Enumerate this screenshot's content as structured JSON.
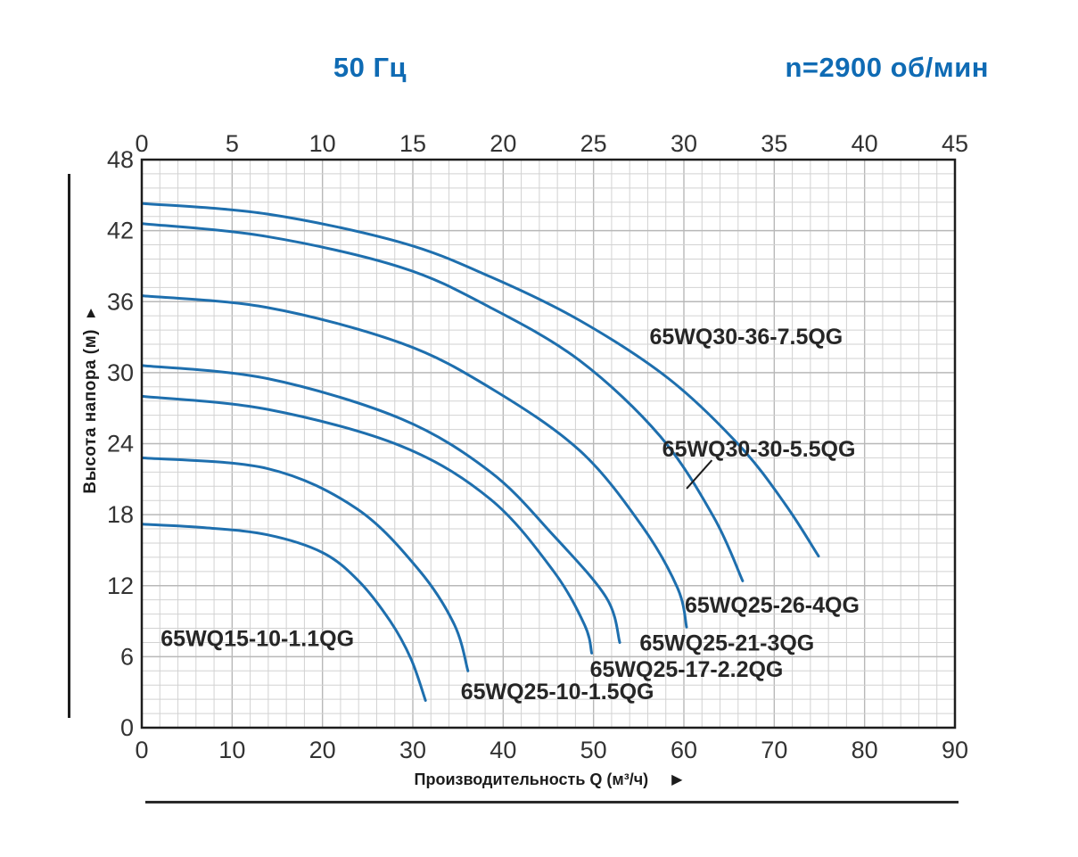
{
  "header": {
    "left_title": "50 Гц",
    "right_title": "n=2900 об/мин"
  },
  "icons": {
    "y_axis_arrow": "▲",
    "x_axis_arrow": "▶"
  },
  "colors": {
    "header_text": "#0f6bb4",
    "curve": "#1e6fae",
    "grid_minor": "#d2d2d2",
    "grid_major": "#b8b8b8",
    "plot_border": "#1d1d1d",
    "tick_text": "#333333",
    "curve_label_text": "#262626"
  },
  "chart_data": {
    "type": "line",
    "title": "50 Гц  n=2900 об/мин",
    "x_bottom": {
      "label": "Производительность Q (м³/ч)",
      "ticks": [
        0,
        10,
        20,
        30,
        40,
        50,
        60,
        70,
        80,
        90
      ],
      "range": [
        0,
        90
      ]
    },
    "x_top": {
      "ticks": [
        0,
        5,
        10,
        15,
        20,
        25,
        30,
        35,
        40,
        45
      ],
      "range": [
        0,
        45
      ]
    },
    "y": {
      "label": "Высота напора (м)",
      "ticks": [
        48,
        42,
        36,
        30,
        24,
        18,
        12,
        6,
        0
      ],
      "range": [
        0,
        48
      ]
    },
    "grid": {
      "x_minor_divisions": 45,
      "x_major_every": 5,
      "y_minor_divisions": 40,
      "y_major_every": 5,
      "grid_on": true
    },
    "legend_position": "inline-labels",
    "series": [
      {
        "name": "65WQ30-36-7.5QG",
        "points": [
          [
            0,
            44.3
          ],
          [
            13.9,
            43.4
          ],
          [
            28.7,
            41.0
          ],
          [
            38.6,
            38.1
          ],
          [
            48.5,
            34.4
          ],
          [
            58.3,
            29.5
          ],
          [
            66.2,
            23.8
          ],
          [
            71.2,
            18.9
          ],
          [
            74.9,
            14.5
          ]
        ],
        "label": {
          "q": 56.2,
          "h": 32.9
        }
      },
      {
        "name": "65WQ30-30-5.5QG",
        "points": [
          [
            0,
            42.6
          ],
          [
            13.9,
            41.5
          ],
          [
            28.7,
            38.9
          ],
          [
            38.6,
            35.5
          ],
          [
            48.5,
            31.0
          ],
          [
            57.4,
            24.6
          ],
          [
            63.3,
            17.8
          ],
          [
            66.5,
            12.4
          ]
        ],
        "label": {
          "q": 57.6,
          "h": 23.4
        }
      },
      {
        "name": "65WQ25-26-4QG",
        "points": [
          [
            0,
            36.5
          ],
          [
            13.9,
            35.5
          ],
          [
            28.7,
            32.5
          ],
          [
            38.6,
            28.7
          ],
          [
            48.5,
            23.4
          ],
          [
            55.4,
            17.0
          ],
          [
            59.3,
            11.8
          ],
          [
            60.3,
            8.5
          ]
        ],
        "label": {
          "q": 60.1,
          "h": 10.2
        }
      },
      {
        "name": "65WQ25-21-3QG",
        "points": [
          [
            0,
            30.6
          ],
          [
            13.9,
            29.5
          ],
          [
            28.7,
            26.1
          ],
          [
            38.6,
            21.6
          ],
          [
            45.5,
            16.3
          ],
          [
            51.4,
            11.0
          ],
          [
            52.9,
            7.2
          ]
        ],
        "label": {
          "q": 55.1,
          "h": 7.0
        }
      },
      {
        "name": "65WQ25-17-2.2QG",
        "points": [
          [
            0,
            28.0
          ],
          [
            13.9,
            26.9
          ],
          [
            28.7,
            23.8
          ],
          [
            38.6,
            19.3
          ],
          [
            45.5,
            13.3
          ],
          [
            49.0,
            8.7
          ],
          [
            49.8,
            6.3
          ]
        ],
        "label": {
          "q": 49.6,
          "h": 4.8
        }
      },
      {
        "name": "65WQ25-10-1.5QG",
        "points": [
          [
            0,
            22.8
          ],
          [
            13.9,
            21.9
          ],
          [
            23.8,
            18.5
          ],
          [
            30.7,
            13.3
          ],
          [
            34.6,
            8.7
          ],
          [
            36.1,
            4.8
          ]
        ],
        "label": {
          "q": 35.3,
          "h": 2.9
        }
      },
      {
        "name": "65WQ15-10-1.1QG",
        "points": [
          [
            0,
            17.2
          ],
          [
            7.0,
            16.9
          ],
          [
            13.9,
            16.3
          ],
          [
            20.0,
            14.8
          ],
          [
            24.0,
            12.4
          ],
          [
            27.5,
            9.0
          ],
          [
            29.8,
            5.8
          ],
          [
            31.4,
            2.3
          ]
        ],
        "label": {
          "q": 2.1,
          "h": 7.4
        }
      }
    ],
    "leader_line": {
      "from_q": 60.3,
      "from_h": 20.2,
      "to_q": 63.1,
      "to_h": 22.6
    }
  }
}
